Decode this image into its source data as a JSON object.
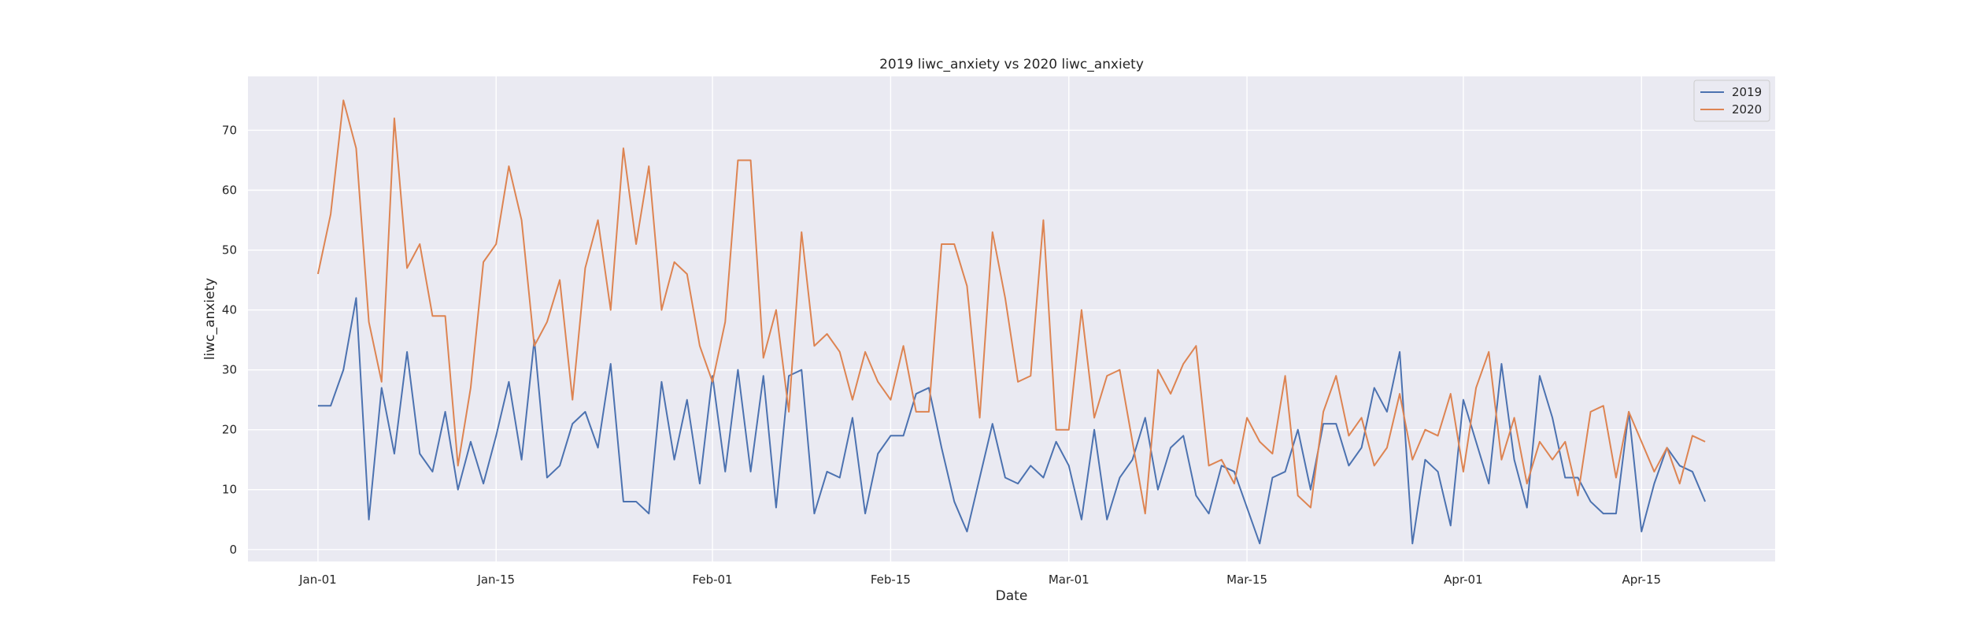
{
  "chart_data": {
    "type": "line",
    "title": "2019 liwc_anxiety vs 2020 liwc_anxiety",
    "xlabel": "Date",
    "ylabel": "liwc_anxiety",
    "x_start": "Jan-01",
    "x_tick_labels": [
      "Jan-01",
      "Jan-15",
      "Feb-01",
      "Feb-15",
      "Mar-01",
      "Mar-15",
      "Apr-01",
      "Apr-15"
    ],
    "x_tick_days": [
      0,
      14,
      31,
      45,
      59,
      73,
      90,
      104
    ],
    "xlim_days": [
      -5.5,
      114.5
    ],
    "ylim": [
      -2,
      79
    ],
    "y_ticks": [
      0,
      10,
      20,
      30,
      40,
      50,
      60,
      70
    ],
    "grid": true,
    "legend_position": "top-right",
    "series": [
      {
        "name": "2019",
        "color": "#4c72b0",
        "values": [
          24,
          24,
          30,
          42,
          5,
          27,
          16,
          33,
          16,
          13,
          23,
          10,
          18,
          11,
          19,
          28,
          15,
          35,
          12,
          14,
          21,
          23,
          17,
          31,
          8,
          8,
          6,
          28,
          15,
          25,
          11,
          29,
          13,
          30,
          13,
          29,
          7,
          29,
          30,
          6,
          13,
          12,
          22,
          6,
          16,
          19,
          19,
          26,
          27,
          17,
          8,
          3,
          12,
          21,
          12,
          11,
          14,
          12,
          18,
          14,
          5,
          20,
          5,
          12,
          15,
          22,
          10,
          17,
          19,
          9,
          6,
          14,
          13,
          7,
          1,
          12,
          13,
          20,
          10,
          21,
          21,
          14,
          17,
          27,
          23,
          33,
          1,
          15,
          13,
          4,
          25,
          18,
          11,
          31,
          15,
          7,
          29,
          22,
          12,
          12,
          8,
          6,
          6,
          23,
          3,
          11,
          17,
          14,
          13,
          8
        ]
      },
      {
        "name": "2020",
        "color": "#dd8452",
        "values": [
          46,
          56,
          75,
          67,
          38,
          28,
          72,
          47,
          51,
          39,
          39,
          14,
          27,
          48,
          51,
          64,
          55,
          34,
          38,
          45,
          25,
          47,
          55,
          40,
          67,
          51,
          64,
          40,
          48,
          46,
          34,
          28,
          38,
          65,
          65,
          32,
          40,
          23,
          53,
          34,
          36,
          33,
          25,
          33,
          28,
          25,
          34,
          23,
          23,
          51,
          51,
          44,
          22,
          53,
          42,
          28,
          29,
          55,
          20,
          20,
          40,
          22,
          29,
          30,
          18,
          6,
          30,
          26,
          31,
          34,
          14,
          15,
          11,
          22,
          18,
          16,
          29,
          9,
          7,
          23,
          29,
          19,
          22,
          14,
          17,
          26,
          15,
          20,
          19,
          26,
          13,
          27,
          33,
          15,
          22,
          11,
          18,
          15,
          18,
          9,
          23,
          24,
          12,
          23,
          18,
          13,
          17,
          11,
          19,
          18
        ]
      }
    ]
  }
}
